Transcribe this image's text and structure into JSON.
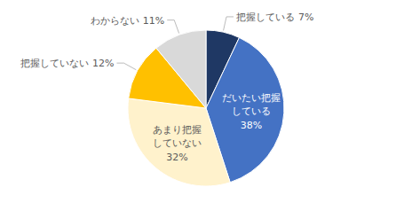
{
  "chart_data": {
    "type": "pie",
    "categories": [
      "把握している",
      "だいたい把握\nしている",
      "あまり把握\nしていない",
      "把握していない",
      "わからない"
    ],
    "values": [
      7,
      38,
      32,
      12,
      11
    ],
    "value_labels": [
      "7%",
      "38%",
      "32%",
      "12%",
      "11%"
    ],
    "colors": [
      "#1F3864",
      "#4472C4",
      "#FFF2CC",
      "#FFC000",
      "#D9D9D9"
    ],
    "data_labels": true
  }
}
